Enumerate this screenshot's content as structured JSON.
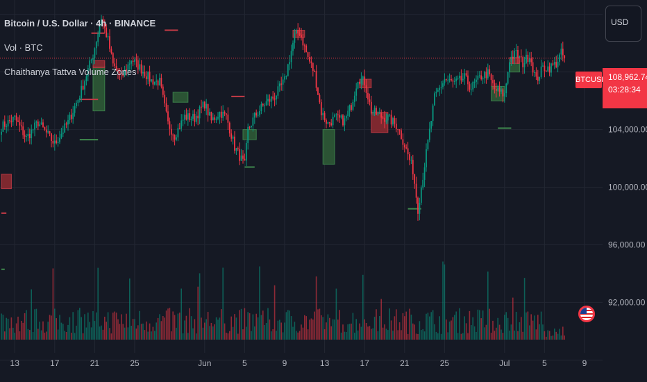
{
  "header": {
    "title": "Bitcoin / U.S. Dollar · 4h · BINANCE",
    "volume_label": "Vol · BTC",
    "indicator_label": "Chaithanya Tattva Volume Zones"
  },
  "currency_button": "USD",
  "price_tag": {
    "symbol": "BTCUSD",
    "price": "108,962.74",
    "countdown": "03:28:34"
  },
  "colors": {
    "background": "#151924",
    "grid": "#232733",
    "up": "#089981",
    "down": "#f23645",
    "zone_green": "#2e5a36",
    "zone_red": "#8a2a31",
    "axis_text": "#b2b5be"
  },
  "chart_data": {
    "type": "candlestick",
    "interval": "4h",
    "y_axis": {
      "ylim": [
        88500,
        113000
      ],
      "ticks": [
        92000,
        96000,
        100000,
        104000
      ],
      "tick_labels": [
        "92,000.00",
        "96,000.00",
        "100,000.00",
        "104,000.00"
      ]
    },
    "x_axis": {
      "ticks": [
        {
          "label": "13",
          "bar": 8
        },
        {
          "label": "17",
          "bar": 32
        },
        {
          "label": "21",
          "bar": 56
        },
        {
          "label": "25",
          "bar": 80
        },
        {
          "label": "Jun",
          "bar": 122
        },
        {
          "label": "5",
          "bar": 146
        },
        {
          "label": "9",
          "bar": 170
        },
        {
          "label": "13",
          "bar": 194
        },
        {
          "label": "17",
          "bar": 218
        },
        {
          "label": "21",
          "bar": 242
        },
        {
          "label": "25",
          "bar": 266
        },
        {
          "label": "Jul",
          "bar": 302
        },
        {
          "label": "5",
          "bar": 326
        },
        {
          "label": "9",
          "bar": 350
        }
      ]
    },
    "last_price": 108962.74,
    "price_anchors": [
      [
        0,
        104.2
      ],
      [
        8,
        104.8
      ],
      [
        15,
        103.4
      ],
      [
        22,
        104.5
      ],
      [
        32,
        103.0
      ],
      [
        40,
        104.5
      ],
      [
        47,
        106.4
      ],
      [
        55,
        109.2
      ],
      [
        60,
        111.8
      ],
      [
        64,
        110.2
      ],
      [
        67,
        108.5
      ],
      [
        72,
        107.6
      ],
      [
        78,
        108.9
      ],
      [
        84,
        108.2
      ],
      [
        90,
        107.4
      ],
      [
        95,
        107.3
      ],
      [
        100,
        104.4
      ],
      [
        104,
        103.6
      ],
      [
        110,
        104.9
      ],
      [
        116,
        104.8
      ],
      [
        122,
        105.8
      ],
      [
        126,
        104.6
      ],
      [
        131,
        105.2
      ],
      [
        135,
        104.9
      ],
      [
        140,
        102.8
      ],
      [
        146,
        101.5
      ],
      [
        148,
        104.0
      ],
      [
        152,
        104.9
      ],
      [
        158,
        105.8
      ],
      [
        164,
        106.3
      ],
      [
        170,
        107.4
      ],
      [
        176,
        110.5
      ],
      [
        179,
        110.8
      ],
      [
        184,
        109.0
      ],
      [
        188,
        107.9
      ],
      [
        192,
        105.2
      ],
      [
        196,
        104.4
      ],
      [
        200,
        104.8
      ],
      [
        206,
        104.6
      ],
      [
        210,
        105.7
      ],
      [
        214,
        107.6
      ],
      [
        218,
        107.3
      ],
      [
        222,
        105.3
      ],
      [
        228,
        104.9
      ],
      [
        232,
        104.8
      ],
      [
        238,
        104.2
      ],
      [
        243,
        102.6
      ],
      [
        247,
        101.2
      ],
      [
        250,
        98.5
      ],
      [
        253,
        100.8
      ],
      [
        256,
        103.1
      ],
      [
        260,
        106.2
      ],
      [
        266,
        107.5
      ],
      [
        272,
        107.2
      ],
      [
        278,
        107.6
      ],
      [
        282,
        106.9
      ],
      [
        288,
        107.7
      ],
      [
        292,
        107.9
      ],
      [
        296,
        106.8
      ],
      [
        302,
        106.4
      ],
      [
        305,
        108.9
      ],
      [
        309,
        109.3
      ],
      [
        313,
        108.6
      ],
      [
        317,
        109.2
      ],
      [
        321,
        107.4
      ],
      [
        325,
        108.3
      ],
      [
        329,
        108.3
      ],
      [
        333,
        108.6
      ],
      [
        336,
        109.3
      ],
      [
        338,
        108.96
      ]
    ],
    "supply_zones": [
      {
        "bar0": 55,
        "bar1": 62,
        "top": 108.4,
        "bottom": 105.3,
        "color": "green"
      },
      {
        "bar0": 55,
        "bar1": 62,
        "top": 108.8,
        "bottom": 108.3,
        "color": "red"
      },
      {
        "bar0": 103,
        "bar1": 112,
        "top": 106.6,
        "bottom": 105.9,
        "color": "green"
      },
      {
        "bar0": 145,
        "bar1": 153,
        "top": 104.0,
        "bottom": 103.3,
        "color": "green"
      },
      {
        "bar0": 175,
        "bar1": 182,
        "top": 110.9,
        "bottom": 110.4,
        "color": "red"
      },
      {
        "bar0": 193,
        "bar1": 200,
        "top": 104.0,
        "bottom": 101.6,
        "color": "green"
      },
      {
        "bar0": 215,
        "bar1": 222,
        "top": 107.5,
        "bottom": 106.9,
        "color": "red"
      },
      {
        "bar0": 222,
        "bar1": 232,
        "top": 105.2,
        "bottom": 103.8,
        "color": "red"
      },
      {
        "bar0": 294,
        "bar1": 302,
        "top": 107.0,
        "bottom": 106.0,
        "color": "green"
      },
      {
        "bar0": 305,
        "bar1": 311,
        "top": 108.8,
        "bottom": 108.0,
        "color": "green"
      },
      {
        "bar0": 305,
        "bar1": 311,
        "top": 109.0,
        "bottom": 108.6,
        "color": "red"
      },
      {
        "bar0": 0,
        "bar1": 6,
        "top": 100.9,
        "bottom": 99.9,
        "color": "red"
      }
    ],
    "level_lines": [
      {
        "bar0": 54,
        "bar1": 62,
        "price": 110.7,
        "color": "red"
      },
      {
        "bar0": 98,
        "bar1": 106,
        "price": 110.9,
        "color": "red"
      },
      {
        "bar0": 146,
        "bar1": 152,
        "price": 101.4,
        "color": "green"
      },
      {
        "bar0": 138,
        "bar1": 146,
        "price": 106.3,
        "color": "red"
      },
      {
        "bar0": 47,
        "bar1": 58,
        "price": 106.1,
        "color": "red"
      },
      {
        "bar0": 47,
        "bar1": 58,
        "price": 103.3,
        "color": "green"
      },
      {
        "bar0": 244,
        "bar1": 252,
        "price": 98.5,
        "color": "green"
      },
      {
        "bar0": 298,
        "bar1": 306,
        "price": 104.1,
        "color": "green"
      },
      {
        "bar0": 0,
        "bar1": 3,
        "price": 98.2,
        "color": "red"
      },
      {
        "bar0": 0,
        "bar1": 2,
        "price": 94.3,
        "color": "green"
      }
    ],
    "volume_note": "Volume histogram drawn in lower pane, colored by candle direction"
  }
}
